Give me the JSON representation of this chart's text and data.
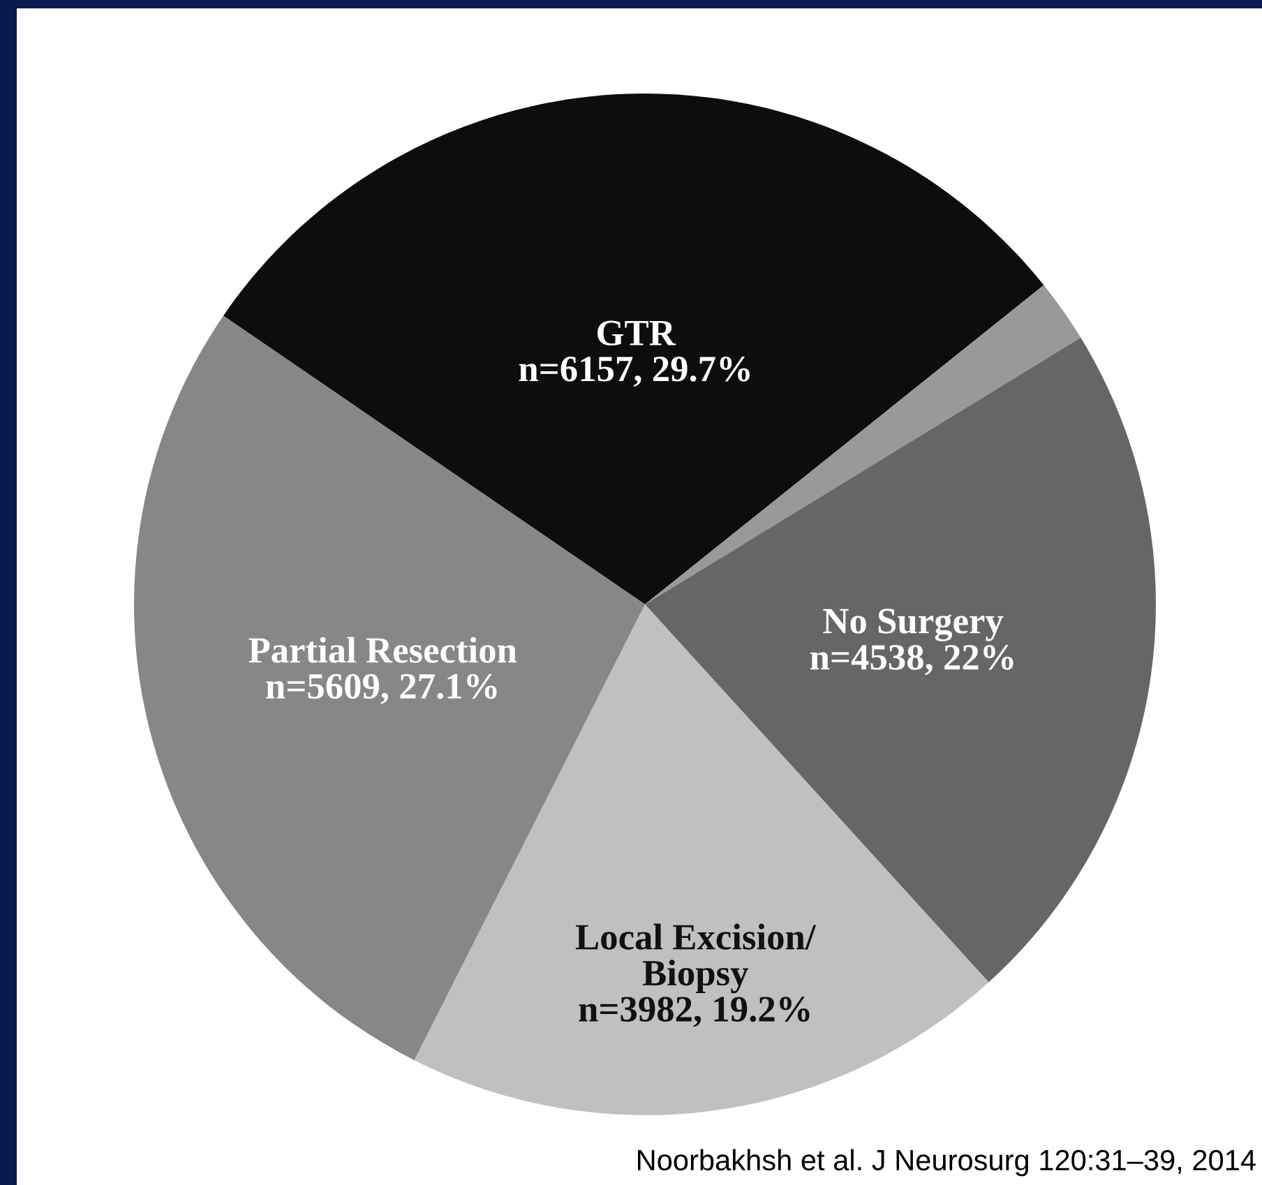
{
  "chart_data": {
    "type": "pie",
    "categories": [
      "GTR",
      null,
      "No Surgery",
      "Local Excision/\nBiopsy",
      "Partial Resection"
    ],
    "values": [
      29.7,
      2.0,
      22,
      19.2,
      27.1
    ],
    "value_labels": [
      "n=6157, 29.7%",
      null,
      "n=4538, 22%",
      "n=3982, 19.2%",
      "n=5609, 27.1%"
    ],
    "colors": [
      "#0d0d0d",
      "#999999",
      "#666666",
      "#c0c0c0",
      "#878787"
    ],
    "annotations": [
      "Noorbakhsh et al. J Neurosurg 120:31–39, 2014"
    ]
  }
}
